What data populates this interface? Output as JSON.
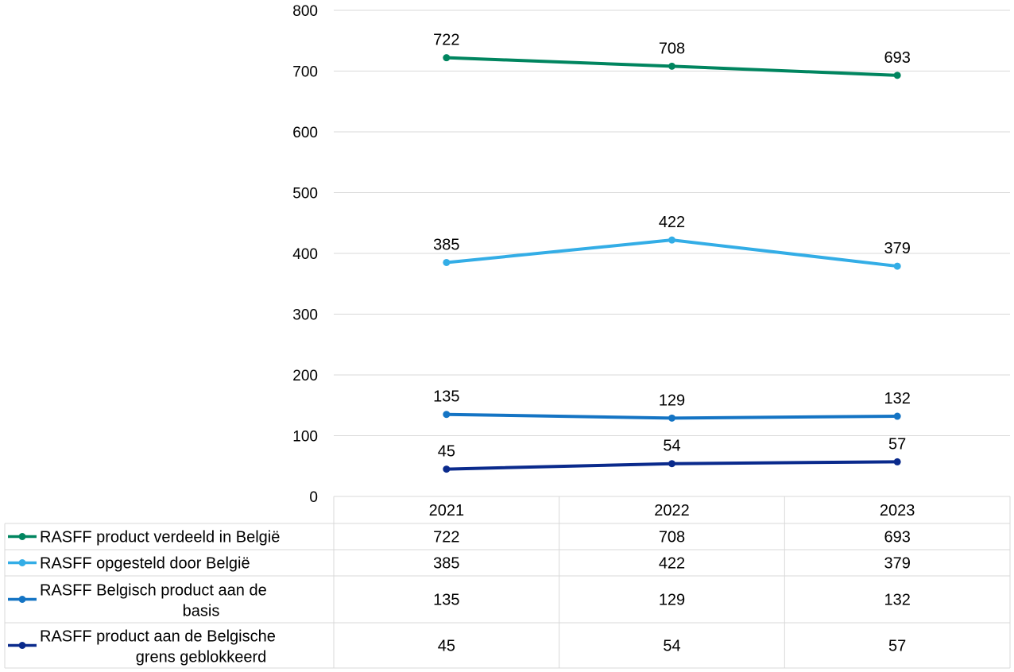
{
  "chart_data": {
    "type": "line",
    "title": "",
    "xlabel": "",
    "ylabel": "",
    "categories": [
      "2021",
      "2022",
      "2023"
    ],
    "ylim": [
      0,
      800
    ],
    "yticks": [
      0,
      100,
      200,
      300,
      400,
      500,
      600,
      700,
      800
    ],
    "grid": true,
    "legend": "data-table-left",
    "series": [
      {
        "name": "RASFF product verdeeld in België",
        "color": "#00855F",
        "values": [
          722,
          708,
          693
        ]
      },
      {
        "name": "RASFF opgesteld door België",
        "color": "#33ADE6",
        "values": [
          385,
          422,
          379
        ]
      },
      {
        "name": "RASFF Belgisch product aan de basis",
        "color": "#1474C4",
        "values": [
          135,
          129,
          132
        ]
      },
      {
        "name": "RASFF product aan de Belgische grens geblokkeerd",
        "color": "#0A2A8C",
        "values": [
          45,
          54,
          57
        ]
      }
    ]
  }
}
